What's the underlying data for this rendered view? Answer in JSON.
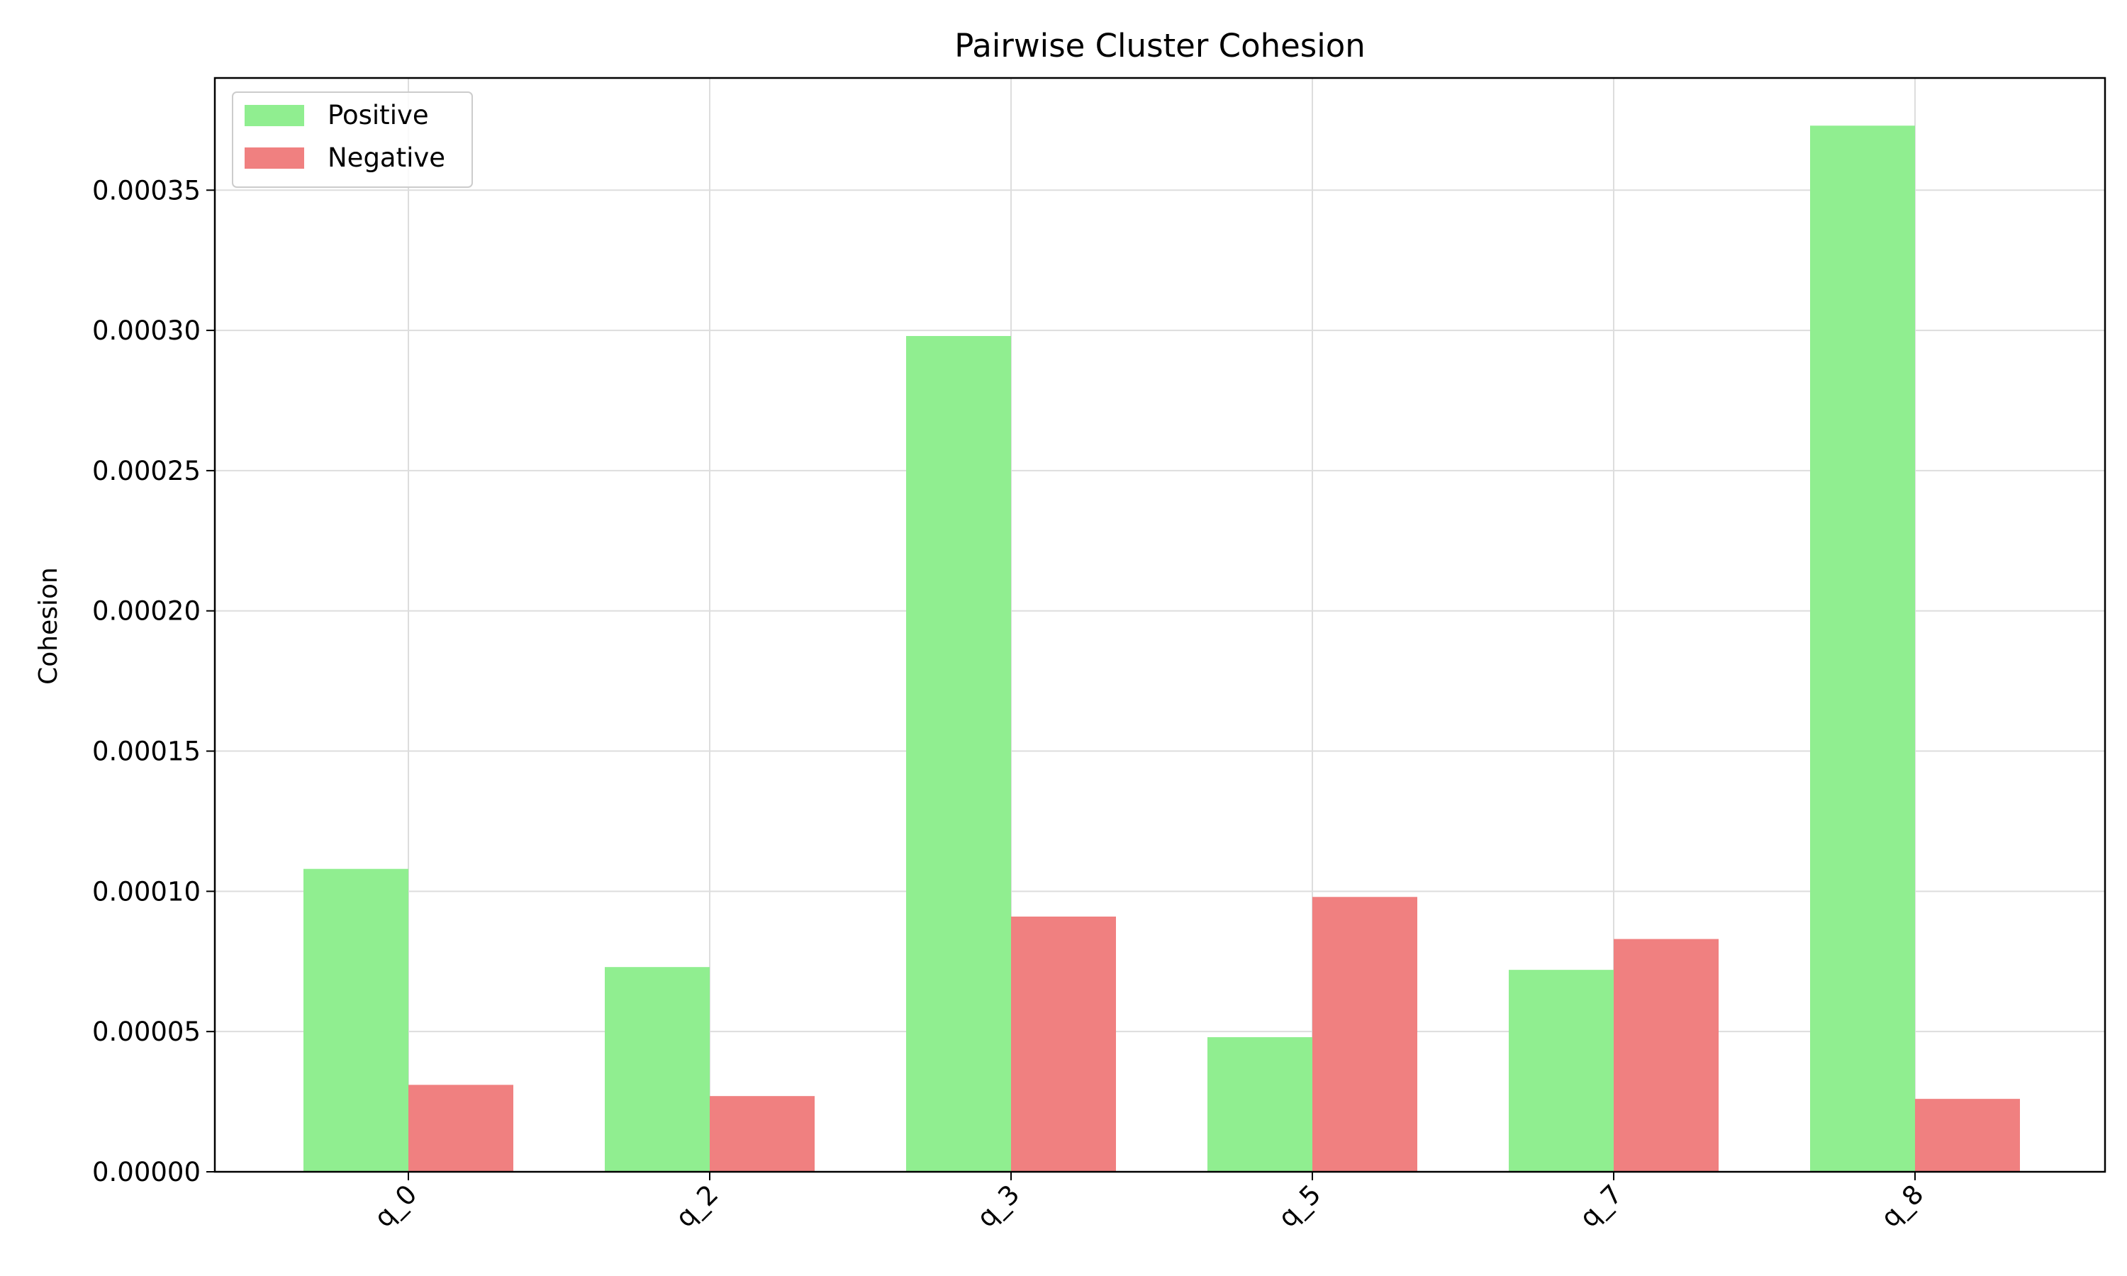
{
  "chart_data": {
    "type": "bar",
    "title": "Pairwise Cluster Cohesion",
    "xlabel": "",
    "ylabel": "Cohesion",
    "categories": [
      "q_0",
      "q_2",
      "q_3",
      "q_5",
      "q_7",
      "q_8"
    ],
    "series": [
      {
        "name": "Positive",
        "color": "#90ee90",
        "values": [
          0.000108,
          7.3e-05,
          0.000298,
          4.8e-05,
          7.2e-05,
          0.000373
        ]
      },
      {
        "name": "Negative",
        "color": "#f08080",
        "values": [
          3.1e-05,
          2.7e-05,
          9.1e-05,
          9.8e-05,
          8.3e-05,
          2.6e-05
        ]
      }
    ],
    "ylim": [
      0,
      0.00039
    ],
    "yticks": [
      "0.00000",
      "0.00005",
      "0.00010",
      "0.00015",
      "0.00020",
      "0.00025",
      "0.00030",
      "0.00035"
    ],
    "grid": true,
    "legend_position": "top-left"
  }
}
